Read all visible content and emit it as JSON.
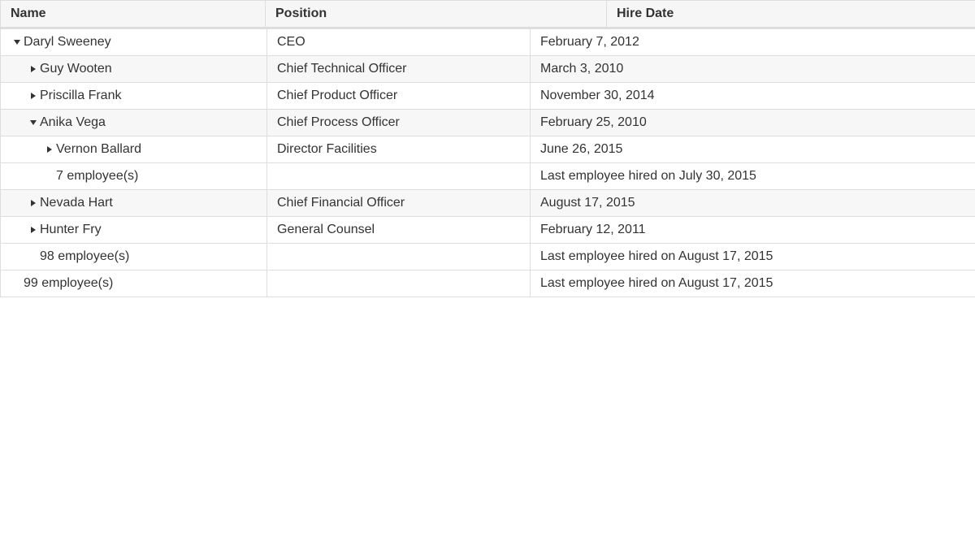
{
  "columns": {
    "name": "Name",
    "position": "Position",
    "hire_date": "Hire Date"
  },
  "rows": [
    {
      "level": 0,
      "toggle": "expanded",
      "name": "Daryl Sweeney",
      "position": "CEO",
      "hire_date": "February 7, 2012",
      "alt": false
    },
    {
      "level": 1,
      "toggle": "collapsed",
      "name": "Guy Wooten",
      "position": "Chief Technical Officer",
      "hire_date": "March 3, 2010",
      "alt": true
    },
    {
      "level": 1,
      "toggle": "collapsed",
      "name": "Priscilla Frank",
      "position": "Chief Product Officer",
      "hire_date": "November 30, 2014",
      "alt": false
    },
    {
      "level": 1,
      "toggle": "expanded",
      "name": "Anika Vega",
      "position": "Chief Process Officer",
      "hire_date": "February 25, 2010",
      "alt": true
    },
    {
      "level": 2,
      "toggle": "collapsed",
      "name": "Vernon Ballard",
      "position": "Director Facilities",
      "hire_date": "June 26, 2015",
      "alt": false
    },
    {
      "level": 2,
      "toggle": "none",
      "name": "7 employee(s)",
      "position": "",
      "hire_date": "Last employee hired on July 30, 2015",
      "alt": false,
      "footer": true
    },
    {
      "level": 1,
      "toggle": "collapsed",
      "name": "Nevada Hart",
      "position": "Chief Financial Officer",
      "hire_date": "August 17, 2015",
      "alt": true
    },
    {
      "level": 1,
      "toggle": "collapsed",
      "name": "Hunter Fry",
      "position": "General Counsel",
      "hire_date": "February 12, 2011",
      "alt": false
    },
    {
      "level": 1,
      "toggle": "none",
      "name": "98 employee(s)",
      "position": "",
      "hire_date": "Last employee hired on August 17, 2015",
      "alt": false,
      "footer": true
    },
    {
      "level": 0,
      "toggle": "none",
      "name": "99 employee(s)",
      "position": "",
      "hire_date": "Last employee hired on August 17, 2015",
      "alt": false,
      "footer": true
    }
  ]
}
